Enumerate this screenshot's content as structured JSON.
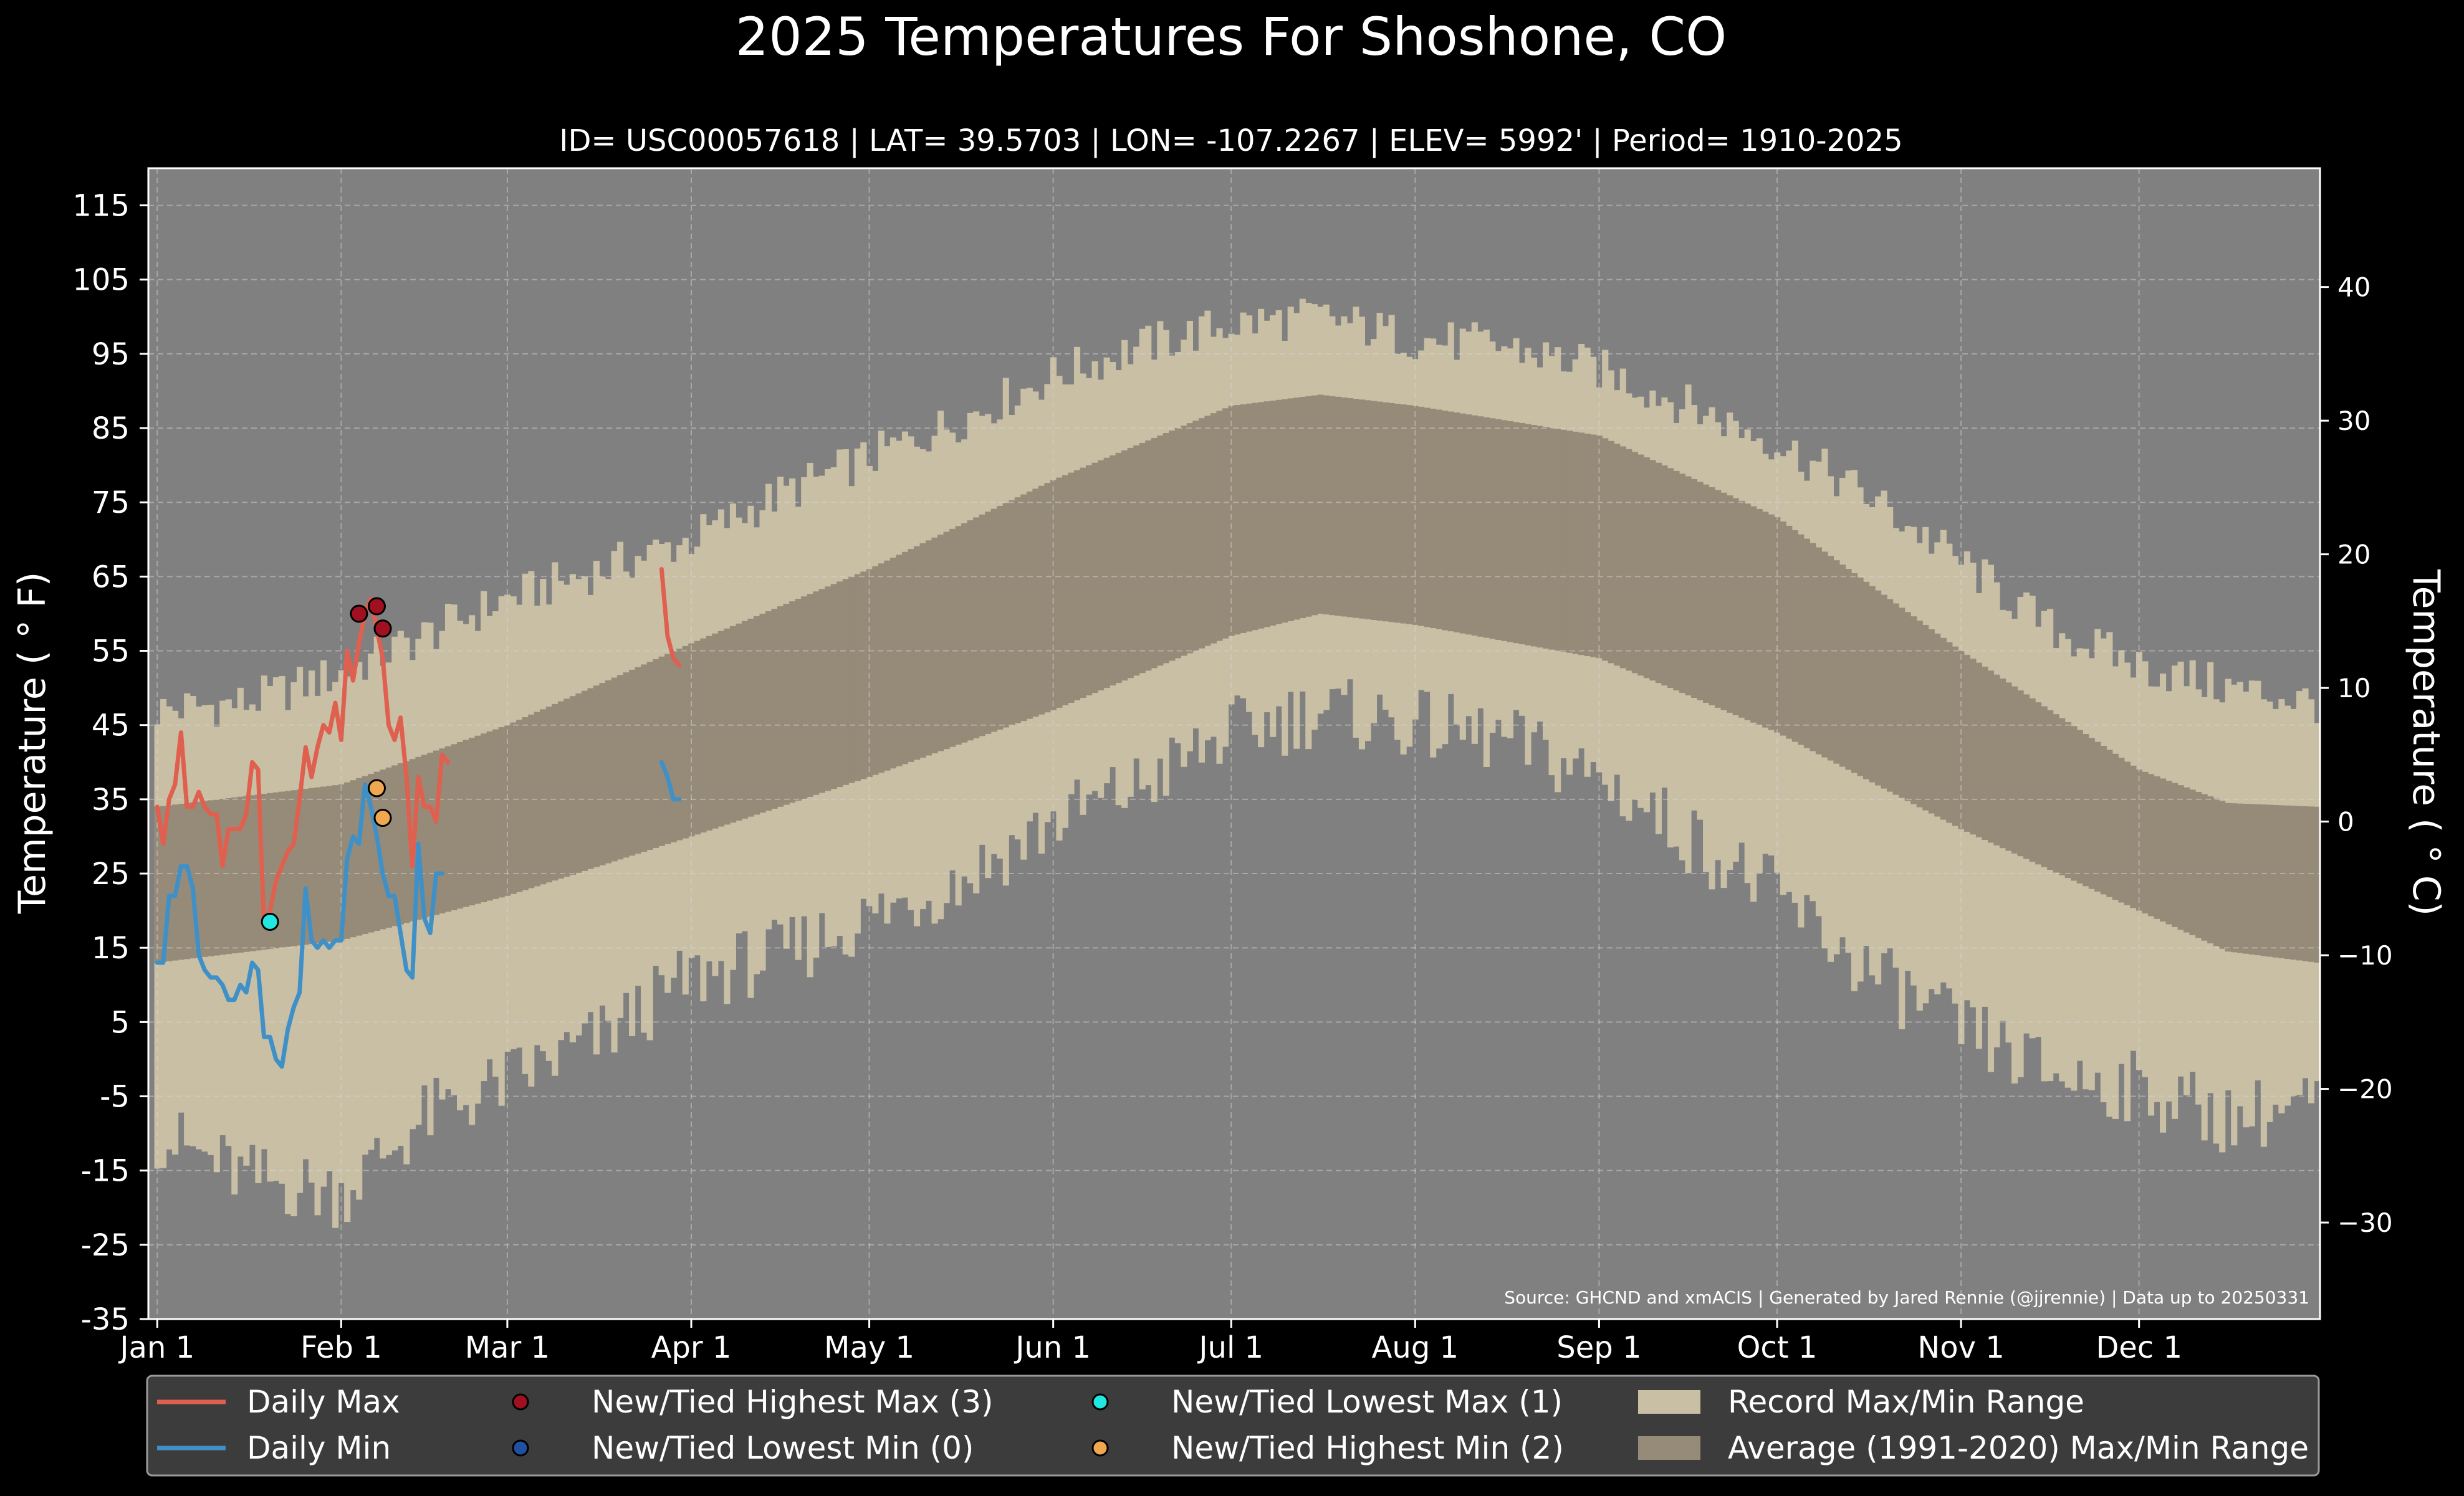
{
  "chart_data": {
    "type": "line",
    "title": "2025 Temperatures For Shoshone, CO",
    "subtitle": "ID= USC00057618 | LAT= 39.5703 | LON= -107.2267 | ELEV= 5992' | Period= 1910-2025",
    "ylabel": "Temperature ($^\\circ$F)",
    "ylabel_display": "Temperature ( ° F)",
    "ylabel_right": "Temperature ( ° C)",
    "source": "Source: GHCND and xmACIS | Generated by Jared Rennie (@jjrennie) | Data up to 20250331",
    "ylim": [
      -35,
      120
    ],
    "xlim_day": [
      -1.5,
      364.5
    ],
    "y_ticks": [
      115,
      105,
      95,
      85,
      75,
      65,
      55,
      45,
      35,
      25,
      15,
      5,
      -5,
      -15,
      -25,
      -35
    ],
    "y_tick_labels": [
      "115",
      "105",
      "95",
      "85",
      "75",
      "65",
      "55",
      "45",
      "35",
      "25",
      "15",
      "5",
      "-5",
      "-15",
      "-25",
      "-35"
    ],
    "c_ticks": [
      40,
      30,
      20,
      10,
      0,
      -10,
      -20,
      -30
    ],
    "c_tick_labels": [
      "40",
      "30",
      "20",
      "10",
      "0",
      "−10",
      "−20",
      "−30"
    ],
    "x_ticks": [
      {
        "label": "Jan 1",
        "day": 0
      },
      {
        "label": "Feb 1",
        "day": 31
      },
      {
        "label": "Mar 1",
        "day": 59
      },
      {
        "label": "Apr 1",
        "day": 90
      },
      {
        "label": "May 1",
        "day": 120
      },
      {
        "label": "Jun 1",
        "day": 151
      },
      {
        "label": "Jul 1",
        "day": 181
      },
      {
        "label": "Aug 1",
        "day": 212
      },
      {
        "label": "Sep 1",
        "day": 243
      },
      {
        "label": "Oct 1",
        "day": 273
      },
      {
        "label": "Nov 1",
        "day": 304
      },
      {
        "label": "Dec 1",
        "day": 334
      }
    ],
    "grid": true,
    "legend_position": "bottom",
    "colors": {
      "background": "#000000",
      "plot_background": "#808080",
      "record_range": "#c9bfa5",
      "average_range": "#958b78",
      "daily_max": "#e06050",
      "daily_min": "#4090c8",
      "highest_max": "#a01020",
      "lowest_min": "#2050a0",
      "lowest_max": "#20e8e0",
      "highest_min": "#f0a850",
      "legend_background": "#3c3c3c",
      "text": "#ffffff"
    },
    "record_range_profile": {
      "day": [
        0,
        15,
        31,
        45,
        59,
        75,
        90,
        105,
        120,
        135,
        151,
        166,
        181,
        196,
        212,
        227,
        243,
        258,
        273,
        288,
        304,
        319,
        334,
        349,
        364
      ],
      "record_max": [
        47,
        48,
        52,
        57,
        62,
        66,
        70,
        76,
        81,
        86,
        92,
        96,
        99,
        100,
        97,
        96,
        93,
        88,
        83,
        76,
        67,
        58,
        53,
        50,
        48
      ],
      "record_min": [
        -10,
        -16,
        -18,
        -8,
        -3,
        3,
        11,
        14,
        19,
        24,
        32,
        37,
        44,
        47,
        45,
        43,
        38,
        30,
        22,
        12,
        4,
        -2,
        -4,
        -8,
        -6
      ]
    },
    "average_range_profile": {
      "day": [
        0,
        31,
        59,
        90,
        120,
        151,
        181,
        196,
        212,
        243,
        273,
        304,
        334,
        349,
        364
      ],
      "avg_max": [
        34,
        37,
        45,
        56,
        66,
        78,
        88,
        89.5,
        88,
        84,
        73,
        55,
        39,
        34.5,
        34
      ],
      "avg_min": [
        13,
        16,
        22,
        30,
        38,
        47,
        57,
        60,
        58.5,
        54,
        44,
        31,
        20,
        14.5,
        13
      ]
    },
    "series": [
      {
        "name": "Daily Max",
        "x": [
          0,
          1,
          2,
          3,
          4,
          5,
          6,
          7,
          8,
          9,
          10,
          11,
          12,
          13,
          14,
          15,
          16,
          17,
          18,
          19,
          20,
          21,
          22,
          23,
          24,
          25,
          26,
          27,
          28,
          29,
          30,
          31,
          32,
          33,
          34,
          35,
          36,
          37,
          38,
          39,
          40,
          41,
          42,
          43,
          44,
          45,
          46,
          47,
          48,
          49,
          null,
          85,
          86,
          87,
          88
        ],
        "values": [
          34,
          29,
          35,
          37,
          44,
          34,
          34,
          36,
          34,
          33,
          33,
          26,
          31,
          31,
          31,
          33,
          40,
          39,
          18,
          20,
          24,
          26,
          28,
          29,
          35,
          42,
          38,
          42,
          45,
          44,
          48,
          43,
          55,
          51,
          56,
          60,
          62,
          58,
          54,
          45,
          43,
          46,
          38,
          26,
          38,
          34,
          34,
          32,
          41,
          40,
          null,
          66,
          57,
          54,
          53
        ]
      },
      {
        "name": "Daily Min",
        "x": [
          0,
          1,
          2,
          3,
          4,
          5,
          6,
          7,
          8,
          9,
          10,
          11,
          12,
          13,
          14,
          15,
          16,
          17,
          18,
          19,
          20,
          21,
          22,
          23,
          24,
          25,
          26,
          27,
          28,
          29,
          30,
          31,
          32,
          33,
          34,
          35,
          36,
          37,
          38,
          39,
          40,
          41,
          42,
          43,
          44,
          45,
          46,
          47,
          48,
          49,
          null,
          85,
          86,
          87,
          88
        ],
        "values": [
          13,
          13,
          22,
          22,
          26,
          26,
          23,
          14,
          12,
          11,
          11,
          10,
          8,
          8,
          10,
          9,
          13,
          12,
          3,
          3,
          0,
          -1,
          4,
          7,
          9,
          23,
          16,
          15,
          16,
          15,
          16,
          16,
          27,
          30,
          29,
          37,
          34,
          30,
          25,
          22,
          22,
          17,
          12,
          11,
          29,
          19,
          17,
          25,
          25,
          null,
          null,
          40,
          38,
          35,
          35
        ]
      }
    ],
    "record_markers": [
      {
        "type": "New/Tied Highest Max",
        "x": [
          34,
          37,
          38
        ],
        "values": [
          60,
          61,
          58
        ]
      },
      {
        "type": "New/Tied Lowest Min",
        "x": [],
        "values": []
      },
      {
        "type": "New/Tied Lowest Max",
        "x": [
          19
        ],
        "values": [
          18.5
        ]
      },
      {
        "type": "New/Tied Highest Min",
        "x": [
          37,
          38
        ],
        "values": [
          36.5,
          32.5
        ]
      }
    ],
    "legend": [
      {
        "label": "Daily Max",
        "kind": "line",
        "color_key": "daily_max"
      },
      {
        "label": "Daily Min",
        "kind": "line",
        "color_key": "daily_min"
      },
      {
        "label": "New/Tied Highest Max (3)",
        "kind": "marker",
        "color_key": "highest_max"
      },
      {
        "label": "New/Tied Lowest Min (0)",
        "kind": "marker",
        "color_key": "lowest_min"
      },
      {
        "label": "New/Tied Lowest Max (1)",
        "kind": "marker",
        "color_key": "lowest_max"
      },
      {
        "label": "New/Tied Highest Min (2)",
        "kind": "marker",
        "color_key": "highest_min"
      },
      {
        "label": "Record Max/Min Range",
        "kind": "patch",
        "color_key": "record_range"
      },
      {
        "label": "Average (1991-2020) Max/Min Range",
        "kind": "patch",
        "color_key": "average_range"
      }
    ]
  }
}
